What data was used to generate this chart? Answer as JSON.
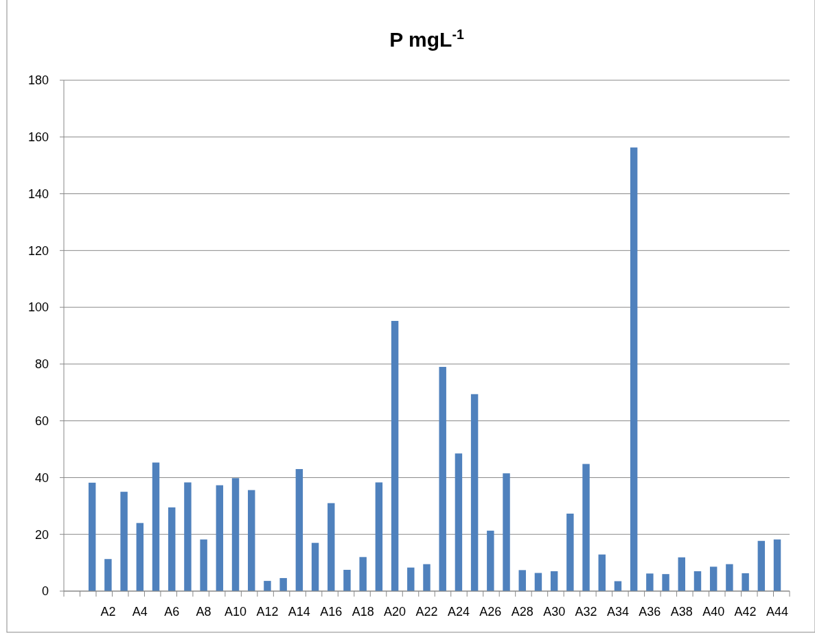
{
  "chart_data": {
    "type": "bar",
    "title": "P mgL$^{-1}$",
    "categories": [
      null,
      null,
      "A2",
      null,
      "A4",
      null,
      "A6",
      null,
      "A8",
      null,
      "A10",
      null,
      "A12",
      null,
      "A14",
      null,
      "A16",
      null,
      "A18",
      null,
      "A20",
      null,
      "A22",
      null,
      "A24",
      null,
      "A26",
      null,
      "A28",
      null,
      "A30",
      null,
      "A32",
      null,
      "A34",
      null,
      "A36",
      null,
      "A38",
      null,
      "A40",
      null,
      "A42",
      null,
      "A44"
    ],
    "values": [
      null,
      38.2,
      11.3,
      35,
      24,
      45.3,
      29.5,
      38.3,
      18.2,
      37.3,
      39.8,
      35.6,
      3.6,
      4.6,
      43,
      17,
      31,
      7.5,
      12,
      38.3,
      95.2,
      8.3,
      9.5,
      79,
      48.5,
      69.4,
      21.3,
      41.5,
      7.4,
      6.4,
      7,
      27.3,
      44.8,
      12.9,
      3.5,
      156.3,
      6.2,
      6,
      11.9,
      7,
      8.6,
      9.5,
      6.3,
      17.7,
      18.2
    ],
    "color": "#4f81bd",
    "ylim": [
      0,
      180
    ],
    "yticks": [
      0,
      20,
      40,
      60,
      80,
      100,
      120,
      140,
      160,
      180
    ],
    "grid": "y"
  }
}
